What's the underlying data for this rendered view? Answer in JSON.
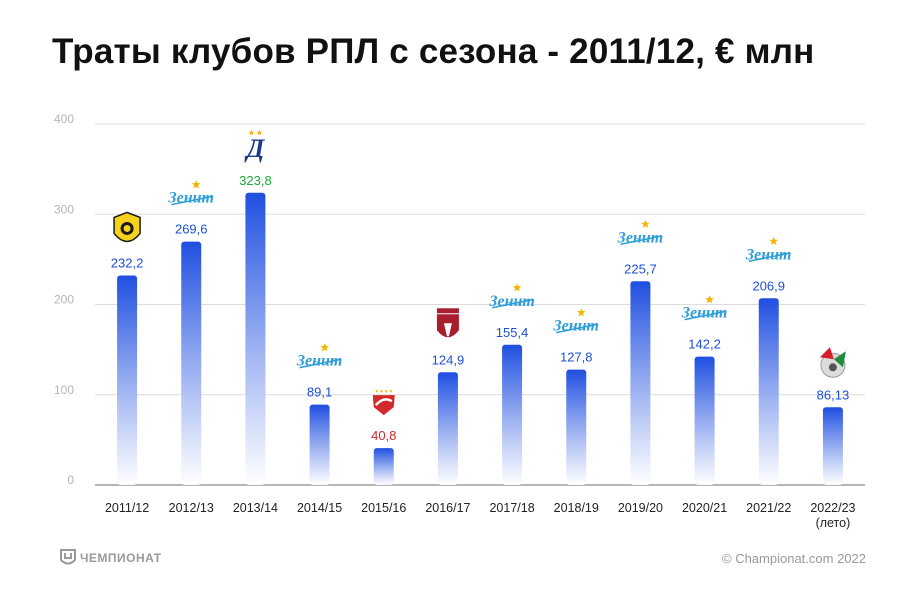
{
  "title": "Траты клубов РПЛ с сезона - 2011/12, € млн",
  "footer": {
    "brand": "ЧЕМПИОНАТ",
    "copyright": "© Championat.com 2022"
  },
  "colors": {
    "bar_top": "#1f4fe0",
    "bar_bottom": "#ffffff",
    "label_default": "#1e4fd8",
    "label_green": "#1aa83a",
    "label_red": "#d02a2a",
    "grid": "#dcdcdc",
    "axis_text": "#b5b5b5"
  },
  "chart_data": {
    "type": "bar",
    "title": "Траты клубов РПЛ с сезона - 2011/12, € млн",
    "xlabel": "",
    "ylabel": "",
    "ylim": [
      0,
      400
    ],
    "yticks": [
      0,
      100,
      200,
      300,
      400
    ],
    "grid": true,
    "categories": [
      "2011/12",
      "2012/13",
      "2013/14",
      "2014/15",
      "2015/16",
      "2016/17",
      "2017/18",
      "2018/19",
      "2019/20",
      "2020/21",
      "2021/22",
      "2022/23"
    ],
    "category_sublabels": [
      "",
      "",
      "",
      "",
      "",
      "",
      "",
      "",
      "",
      "",
      "",
      "(лето)"
    ],
    "values": [
      232.2,
      269.6,
      323.8,
      89.1,
      40.8,
      124.9,
      155.4,
      127.8,
      225.7,
      142.2,
      206.9,
      86.13
    ],
    "value_labels": [
      "232,2",
      "269,6",
      "323,8",
      "89,1",
      "40,8",
      "124,9",
      "155,4",
      "127,8",
      "225,7",
      "142,2",
      "206,9",
      "86,13"
    ],
    "label_colors": [
      "default",
      "default",
      "green",
      "default",
      "red",
      "default",
      "default",
      "default",
      "default",
      "default",
      "default",
      "default"
    ],
    "club_icons": [
      "anzhi-logo-icon",
      "zenit-logo-icon",
      "dynamo-logo-icon",
      "zenit-logo-icon",
      "spartak-logo-icon",
      "rubin-logo-icon",
      "zenit-logo-icon",
      "zenit-logo-icon",
      "zenit-logo-icon",
      "zenit-logo-icon",
      "zenit-logo-icon",
      "lokomotiv-logo-icon"
    ]
  }
}
